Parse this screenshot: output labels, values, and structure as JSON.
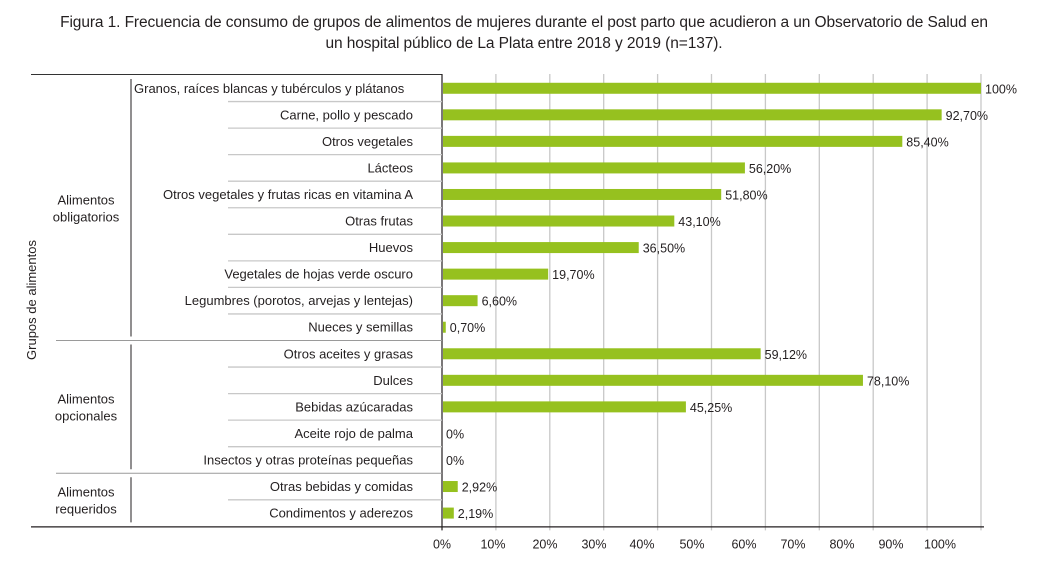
{
  "title_line1": "Figura 1. Frecuencia de consumo de grupos de alimentos de mujeres durante el post parto que acudieron a un Observatorio de Salud en",
  "title_line2": "un hospital público de La Plata entre 2018 y 2019 (n=137).",
  "chart_data": {
    "type": "bar",
    "orientation": "horizontal",
    "title": "Figura 1. Frecuencia de consumo de grupos de alimentos de mujeres durante el post parto que acudieron a un Observatorio de Salud en un hospital público de La Plata entre 2018 y 2019 (n=137).",
    "ylabel": "Grupos de alimentos",
    "xlabel": "",
    "xlim": [
      0,
      100
    ],
    "grid": true,
    "bar_color": "#96c11f",
    "tick_labels": [
      "0%",
      "10%",
      "20%",
      "30%",
      "40%",
      "50%",
      "60%",
      "70%",
      "80%",
      "90%",
      "100%"
    ],
    "groups": [
      {
        "name_lines": [
          "Alimentos",
          "obligatorios"
        ],
        "start": 0,
        "end": 9
      },
      {
        "name_lines": [
          "Alimentos",
          "opcionales"
        ],
        "start": 10,
        "end": 14
      },
      {
        "name_lines": [
          "Alimentos",
          "requeridos"
        ],
        "start": 15,
        "end": 16
      }
    ],
    "categories": [
      "Granos, raíces blancas y tubérculos y plátanos",
      "Carne, pollo y pescado",
      "Otros vegetales",
      "Lácteos",
      "Otros vegetales y frutas ricas en vitamina A",
      "Otras frutas",
      "Huevos",
      "Vegetales de hojas verde oscuro",
      "Legumbres (porotos, arvejas y lentejas)",
      "Nueces y semillas",
      "Otros aceites y grasas",
      "Dulces",
      "Bebidas azúcaradas",
      "Aceite rojo de palma",
      "Insectos y otras proteínas pequeñas",
      "Otras bebidas y comidas",
      "Condimentos y aderezos"
    ],
    "values": [
      100,
      92.7,
      85.4,
      56.2,
      51.8,
      43.1,
      36.5,
      19.7,
      6.6,
      0.7,
      59.12,
      78.1,
      45.25,
      0,
      0,
      2.92,
      2.19
    ],
    "value_labels": [
      "100%",
      "92,70%",
      "85,40%",
      "56,20%",
      "51,80%",
      "43,10%",
      "36,50%",
      "19,70%",
      "6,60%",
      "0,70%",
      "59,12%",
      "78,10%",
      "45,25%",
      "0%",
      "0%",
      "2,92%",
      "2,19%"
    ]
  }
}
